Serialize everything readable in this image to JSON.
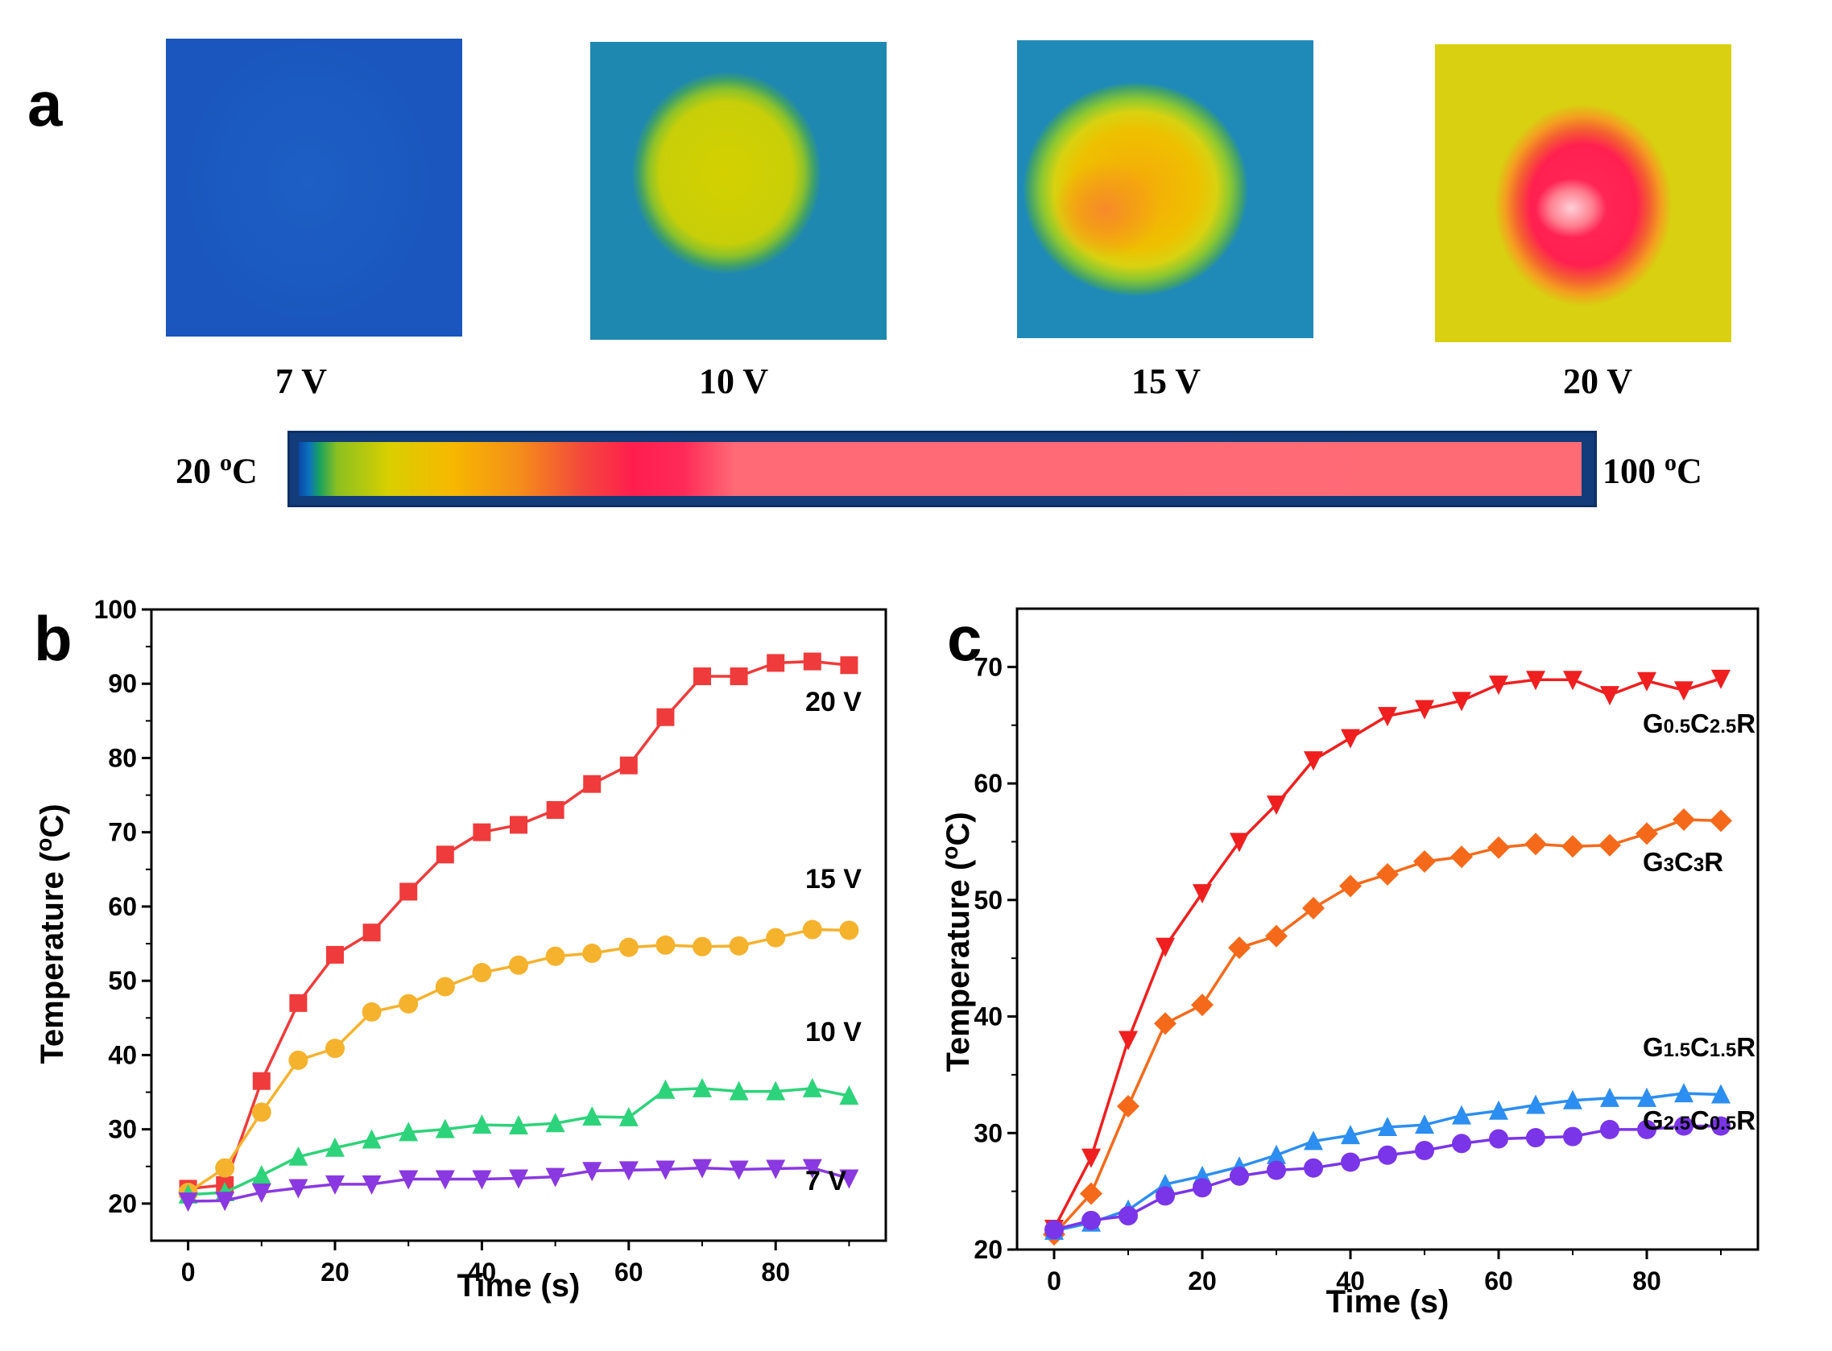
{
  "panel_a": {
    "letter": "a",
    "images": [
      {
        "label": "7 V",
        "hot_color": "#1b5ec4",
        "level": 0.0
      },
      {
        "label": "10 V",
        "hot_color": "#d0d000",
        "level": 0.45
      },
      {
        "label": "15 V",
        "hot_color": "#f4a000",
        "level": 0.65
      },
      {
        "label": "20 V",
        "hot_color": "#ff2050",
        "level": 1.0
      }
    ],
    "scale": {
      "min_label": "20 ",
      "max_label": "100 ",
      "unit_sup": "o",
      "unit": "C"
    }
  },
  "chart_data": [
    {
      "panel": "b",
      "type": "line",
      "xlabel": "Time (s)",
      "ylabel": "Temperature (",
      "ylabel_sup": "o",
      "ylabel_tail": "C)",
      "xlim": [
        -5,
        95
      ],
      "ylim": [
        15,
        100
      ],
      "xticks": [
        0,
        20,
        40,
        60,
        80
      ],
      "yticks": [
        20,
        30,
        40,
        50,
        60,
        70,
        80,
        90,
        100
      ],
      "x": [
        0,
        5,
        10,
        15,
        20,
        25,
        30,
        35,
        40,
        45,
        50,
        55,
        60,
        65,
        70,
        75,
        80,
        85,
        90
      ],
      "series": [
        {
          "name": "20 V",
          "color": "#ef3b3b",
          "marker": "square",
          "values": [
            22,
            22.5,
            36.5,
            47,
            53.5,
            56.5,
            62,
            67,
            70,
            71,
            73,
            76.5,
            79,
            85.5,
            91,
            91,
            92.8,
            93,
            92.5
          ]
        },
        {
          "name": "15 V",
          "color": "#f5b22d",
          "marker": "circle",
          "values": [
            21.5,
            24.8,
            32.3,
            39.3,
            40.9,
            45.8,
            46.9,
            49.2,
            51.1,
            52.1,
            53.3,
            53.7,
            54.5,
            54.8,
            54.6,
            54.7,
            55.8,
            56.9,
            56.8
          ]
        },
        {
          "name": "10 V",
          "color": "#2dd37a",
          "marker": "triangle",
          "values": [
            21.2,
            21.5,
            23.8,
            26.3,
            27.5,
            28.6,
            29.6,
            30.0,
            30.6,
            30.5,
            30.8,
            31.7,
            31.6,
            35.3,
            35.5,
            35.1,
            35.1,
            35.5,
            34.5
          ]
        },
        {
          "name": "7 V",
          "color": "#8a38e0",
          "marker": "triangle-down",
          "values": [
            20.3,
            20.4,
            21.5,
            22.1,
            22.6,
            22.6,
            23.3,
            23.3,
            23.3,
            23.4,
            23.6,
            24.4,
            24.5,
            24.6,
            24.8,
            24.6,
            24.7,
            24.8,
            23.4
          ]
        }
      ],
      "annotations": [
        "20 V",
        "15 V",
        "10 V",
        "7 V"
      ]
    },
    {
      "panel": "c",
      "type": "line",
      "xlabel": "Time (s)",
      "ylabel": "Temperature (",
      "ylabel_sup": "o",
      "ylabel_tail": "C)",
      "xlim": [
        -5,
        95
      ],
      "ylim": [
        20,
        75
      ],
      "xticks": [
        0,
        20,
        40,
        60,
        80
      ],
      "yticks": [
        20,
        30,
        40,
        50,
        60,
        70
      ],
      "x": [
        0,
        5,
        10,
        15,
        20,
        25,
        30,
        35,
        40,
        45,
        50,
        55,
        60,
        65,
        70,
        75,
        80,
        85,
        90
      ],
      "series": [
        {
          "name": "G0.5C2.5R",
          "color": "#ef1f1f",
          "marker": "triangle-down",
          "values": [
            21.8,
            27.9,
            38.0,
            46.0,
            50.6,
            55.0,
            58.2,
            62.0,
            63.9,
            65.8,
            66.4,
            67.1,
            68.5,
            68.9,
            68.9,
            67.6,
            68.8,
            68.0,
            69.0
          ]
        },
        {
          "name": "G3C3R",
          "color": "#f56a1a",
          "marker": "diamond",
          "values": [
            21.3,
            24.8,
            32.3,
            39.4,
            41.0,
            45.9,
            46.9,
            49.3,
            51.2,
            52.2,
            53.3,
            53.7,
            54.5,
            54.8,
            54.6,
            54.7,
            55.7,
            56.9,
            56.8
          ]
        },
        {
          "name": "G1.5C1.5R",
          "color": "#2c8ef0",
          "marker": "triangle",
          "values": [
            21.6,
            22.3,
            23.4,
            25.6,
            26.3,
            27.1,
            28.1,
            29.3,
            29.8,
            30.5,
            30.7,
            31.5,
            31.9,
            32.4,
            32.8,
            33.0,
            33.0,
            33.4,
            33.3
          ]
        },
        {
          "name": "G2.5C0.5R",
          "color": "#7a35e8",
          "marker": "circle",
          "values": [
            21.7,
            22.5,
            22.9,
            24.6,
            25.3,
            26.3,
            26.8,
            27.0,
            27.5,
            28.1,
            28.5,
            29.1,
            29.5,
            29.6,
            29.7,
            30.3,
            30.3,
            30.6,
            30.6
          ]
        }
      ],
      "annotations": [
        "G0.5C2.5R",
        "G3C3R",
        "G1.5C1.5R",
        "G2.5C0.5R"
      ]
    }
  ]
}
